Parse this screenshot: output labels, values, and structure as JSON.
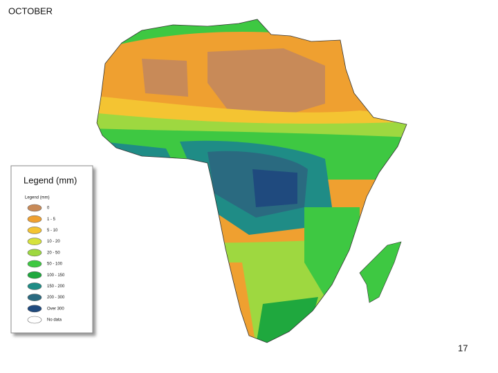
{
  "title": "OCTOBER",
  "legend": {
    "title": "Legend (mm)",
    "subtitle": "Legend (mm)",
    "items": [
      {
        "label": "0",
        "color": "#c88a58"
      },
      {
        "label": "1 - 5",
        "color": "#efa030"
      },
      {
        "label": "5 - 10",
        "color": "#f4c432"
      },
      {
        "label": "10 - 20",
        "color": "#d6e23c"
      },
      {
        "label": "20 - 50",
        "color": "#9ed840"
      },
      {
        "label": "50 - 100",
        "color": "#3ec842"
      },
      {
        "label": "100 - 150",
        "color": "#1fa83e"
      },
      {
        "label": "150 - 200",
        "color": "#1f8c86"
      },
      {
        "label": "200 - 300",
        "color": "#2a6a80"
      },
      {
        "label": "Over 300",
        "color": "#1f4a7e"
      },
      {
        "label": "No data",
        "color": "#ffffff"
      }
    ]
  },
  "page_number": "17"
}
